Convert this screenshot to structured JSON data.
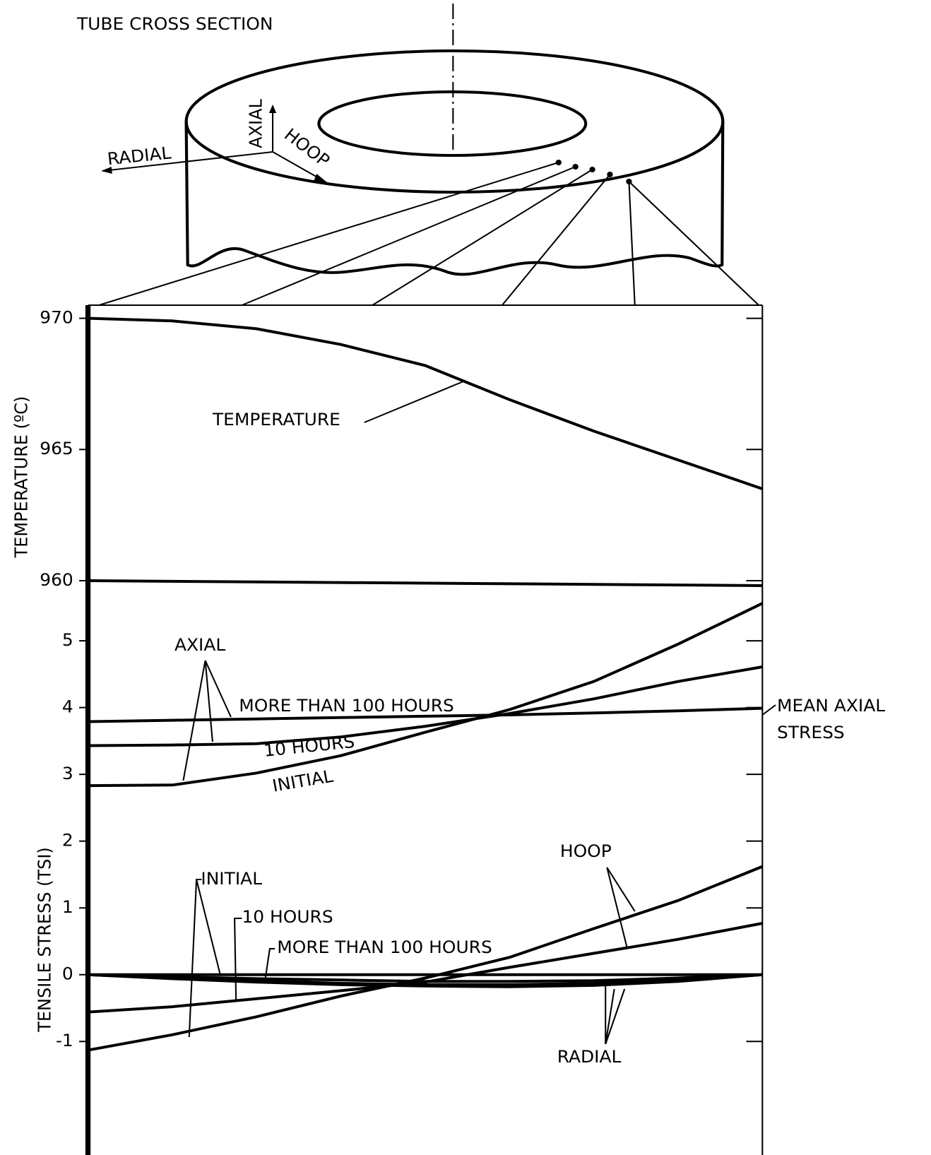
{
  "diagram": {
    "title": "TUBE CROSS SECTION",
    "directions": {
      "axial": "AXIAL",
      "radial": "RADIAL",
      "hoop": "HOOP"
    }
  },
  "chart_data": [
    {
      "type": "line",
      "ylabel": "TEMPERATURE (ºC)",
      "categories": [
        null,
        null,
        null,
        null,
        null,
        null,
        null,
        null,
        null
      ],
      "ylim": [
        960,
        970.5
      ],
      "yticks": [
        960,
        965,
        970
      ],
      "series": [
        {
          "name": "TEMPERATURE",
          "color": "#000000",
          "values": [
            970.0,
            969.9,
            969.6,
            969.0,
            968.2,
            966.9,
            965.7,
            964.6,
            963.5
          ]
        }
      ]
    },
    {
      "type": "line",
      "ylabel": "TENSILE STRESS (TSI)",
      "categories": [
        null,
        null,
        null,
        null,
        null,
        null,
        null,
        null,
        null
      ],
      "ylim": [
        -2.7,
        5.9
      ],
      "yticks": [
        -1,
        0,
        1,
        2,
        3,
        4,
        5
      ],
      "annotations": {
        "axial": "AXIAL",
        "hoop": "HOOP",
        "radial": "RADIAL",
        "mean_axial_stress": [
          "MEAN AXIAL",
          "STRESS"
        ]
      },
      "series": [
        {
          "name": "MORE THAN 100 HOURS",
          "color": "#000000",
          "values": [
            3.79,
            3.81,
            3.83,
            3.85,
            3.87,
            3.89,
            3.92,
            3.95,
            3.99
          ]
        },
        {
          "name": "10 HOURS",
          "color": "#000000",
          "values": [
            3.43,
            3.44,
            3.46,
            3.56,
            3.72,
            3.91,
            4.13,
            4.39,
            4.61
          ]
        },
        {
          "name": "INITIAL",
          "color": "#000000",
          "values": [
            2.83,
            2.84,
            3.02,
            3.28,
            3.63,
            3.97,
            4.39,
            4.95,
            5.56
          ]
        },
        {
          "name": "INITIAL",
          "color": "#000000",
          "values": [
            -1.13,
            -0.9,
            -0.63,
            -0.32,
            -0.05,
            0.26,
            0.69,
            1.11,
            1.62
          ]
        },
        {
          "name": "10 HOURS",
          "color": "#000000",
          "values": [
            -0.56,
            -0.48,
            -0.36,
            -0.24,
            -0.11,
            0.11,
            0.32,
            0.53,
            0.77
          ]
        },
        {
          "name": "MORE THAN 100 HOURS",
          "color": "#000000",
          "values": [
            0,
            0,
            0,
            0,
            0,
            0,
            0,
            0,
            0
          ]
        },
        {
          "color": "#000000",
          "values": [
            0,
            -0.06,
            -0.11,
            -0.15,
            -0.17,
            -0.18,
            -0.16,
            -0.1,
            0
          ]
        },
        {
          "color": "#000000",
          "values": [
            0,
            -0.05,
            -0.09,
            -0.13,
            -0.15,
            -0.15,
            -0.13,
            -0.08,
            0
          ]
        },
        {
          "color": "#000000",
          "values": [
            0,
            -0.03,
            -0.06,
            -0.08,
            -0.1,
            -0.1,
            -0.09,
            -0.05,
            0
          ]
        }
      ]
    }
  ]
}
